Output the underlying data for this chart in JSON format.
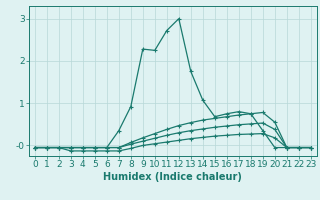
{
  "xlabel": "Humidex (Indice chaleur)",
  "ylabel": "",
  "bg_color": "#dff2f2",
  "grid_color": "#b8d8d8",
  "line_color": "#1a7a6e",
  "xlim": [
    -0.5,
    23.5
  ],
  "ylim": [
    -0.25,
    3.3
  ],
  "yticks": [
    0,
    1,
    2,
    3
  ],
  "ytick_labels": [
    "-0",
    "1",
    "2",
    "3"
  ],
  "xticks": [
    0,
    1,
    2,
    3,
    4,
    5,
    6,
    7,
    8,
    9,
    10,
    11,
    12,
    13,
    14,
    15,
    16,
    17,
    18,
    19,
    20,
    21,
    22,
    23
  ],
  "series": [
    {
      "x": [
        0,
        1,
        2,
        3,
        4,
        5,
        6,
        7,
        8,
        9,
        10,
        11,
        12,
        13,
        14,
        15,
        16,
        17,
        18,
        19,
        20,
        21,
        22,
        23
      ],
      "y": [
        -0.05,
        -0.05,
        -0.05,
        -0.05,
        -0.05,
        -0.05,
        -0.05,
        0.35,
        0.92,
        2.28,
        2.25,
        2.72,
        3.0,
        1.75,
        1.07,
        0.68,
        0.75,
        0.8,
        0.75,
        0.35,
        -0.05,
        -0.05,
        -0.05,
        -0.05
      ]
    },
    {
      "x": [
        0,
        1,
        2,
        3,
        4,
        5,
        6,
        7,
        8,
        9,
        10,
        11,
        12,
        13,
        14,
        15,
        16,
        17,
        18,
        19,
        20,
        21,
        22,
        23
      ],
      "y": [
        -0.05,
        -0.05,
        -0.05,
        -0.05,
        -0.05,
        -0.05,
        -0.05,
        -0.05,
        0.07,
        0.18,
        0.28,
        0.38,
        0.47,
        0.54,
        0.6,
        0.64,
        0.68,
        0.72,
        0.75,
        0.78,
        0.55,
        -0.05,
        -0.05,
        -0.05
      ]
    },
    {
      "x": [
        0,
        1,
        2,
        3,
        4,
        5,
        6,
        7,
        8,
        9,
        10,
        11,
        12,
        13,
        14,
        15,
        16,
        17,
        18,
        19,
        20,
        21,
        22,
        23
      ],
      "y": [
        -0.05,
        -0.05,
        -0.05,
        -0.05,
        -0.05,
        -0.05,
        -0.05,
        -0.05,
        0.03,
        0.1,
        0.17,
        0.24,
        0.3,
        0.35,
        0.39,
        0.43,
        0.46,
        0.49,
        0.51,
        0.53,
        0.38,
        -0.05,
        -0.05,
        -0.05
      ]
    },
    {
      "x": [
        0,
        1,
        2,
        3,
        4,
        5,
        6,
        7,
        8,
        9,
        10,
        11,
        12,
        13,
        14,
        15,
        16,
        17,
        18,
        19,
        20,
        21,
        22,
        23
      ],
      "y": [
        -0.05,
        -0.05,
        -0.05,
        -0.13,
        -0.13,
        -0.13,
        -0.13,
        -0.13,
        -0.07,
        0.0,
        0.04,
        0.08,
        0.12,
        0.16,
        0.19,
        0.22,
        0.24,
        0.26,
        0.27,
        0.28,
        0.18,
        -0.05,
        -0.05,
        -0.05
      ]
    }
  ],
  "marker_size": 2.5,
  "line_width": 0.9,
  "font_size": 6.5
}
